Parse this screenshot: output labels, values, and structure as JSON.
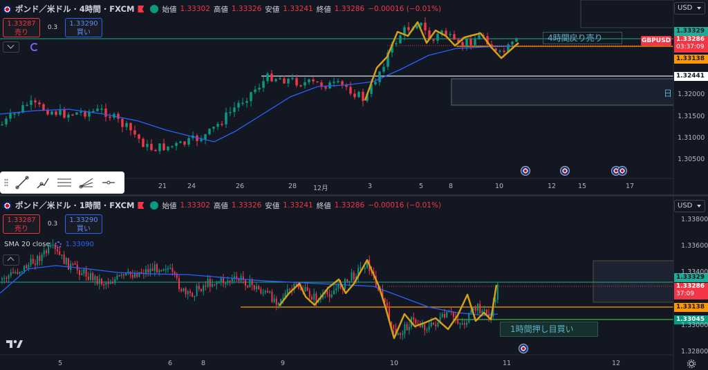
{
  "symbol": {
    "top_title": "ポンド／米ドル · 4時間 · FXCM",
    "bottom_title": "ポンド／米ドル · 1時間 · FXCM"
  },
  "ohlc": {
    "open_label": "始値",
    "open": "1.33302",
    "high_label": "高値",
    "high": "1.33326",
    "low_label": "安値",
    "low": "1.33241",
    "close_label": "終値",
    "close": "1.33286",
    "change": "−0.00016 (−0.01%)"
  },
  "trade": {
    "sell_price": "1.33287",
    "sell_label": "売り",
    "buy_price": "1.33290",
    "buy_label": "買い",
    "spread": "0.3"
  },
  "currency": "USD",
  "indicator": {
    "name": "SMA 20 close",
    "value": "1.33090"
  },
  "top": {
    "annotation": "4時間戻り売り",
    "partial_label": "日",
    "ticker_tag": "GBPUSD",
    "price_tags": [
      {
        "value": "1.33329",
        "color": "#22ab94",
        "text_color": "#131722"
      },
      {
        "value": "1.33286",
        "sub": "03:37:09",
        "color": "#f23645",
        "text_color": "#ffffff"
      },
      {
        "value": "1.33138",
        "color": "#ff9800",
        "text_color": "#131722"
      },
      {
        "value": "1.32441",
        "color": "#ffffff",
        "text_color": "#131722"
      }
    ],
    "y_ticks": [
      "1.32000",
      "1.31500",
      "1.31000",
      "1.30500"
    ],
    "x_ticks": [
      "21",
      "24",
      "26",
      "28",
      "12月",
      "3",
      "5",
      "8",
      "10",
      "12",
      "15",
      "17"
    ]
  },
  "bottom": {
    "annotation": "1時間押し目買い",
    "price_tags": [
      {
        "value": "1.33329",
        "color": "#22ab94",
        "text_color": "#131722"
      },
      {
        "value": "1.33286",
        "sub": "37:09",
        "color": "#f23645",
        "text_color": "#ffffff"
      },
      {
        "value": "1.33138",
        "color": "#ff9800",
        "text_color": "#131722"
      },
      {
        "value": "1.33045",
        "color": "#089981",
        "text_color": "#ffffff"
      }
    ],
    "y_ticks": [
      "1.33800",
      "1.33600",
      "1.33400",
      "1.33000",
      "1.32800"
    ],
    "x_ticks": [
      "5",
      "6",
      "8",
      "9",
      "10",
      "11",
      "12"
    ]
  },
  "colors": {
    "up": "#089981",
    "down": "#f23645",
    "sma": "#2962ff",
    "zigzag": "#d4a017"
  }
}
